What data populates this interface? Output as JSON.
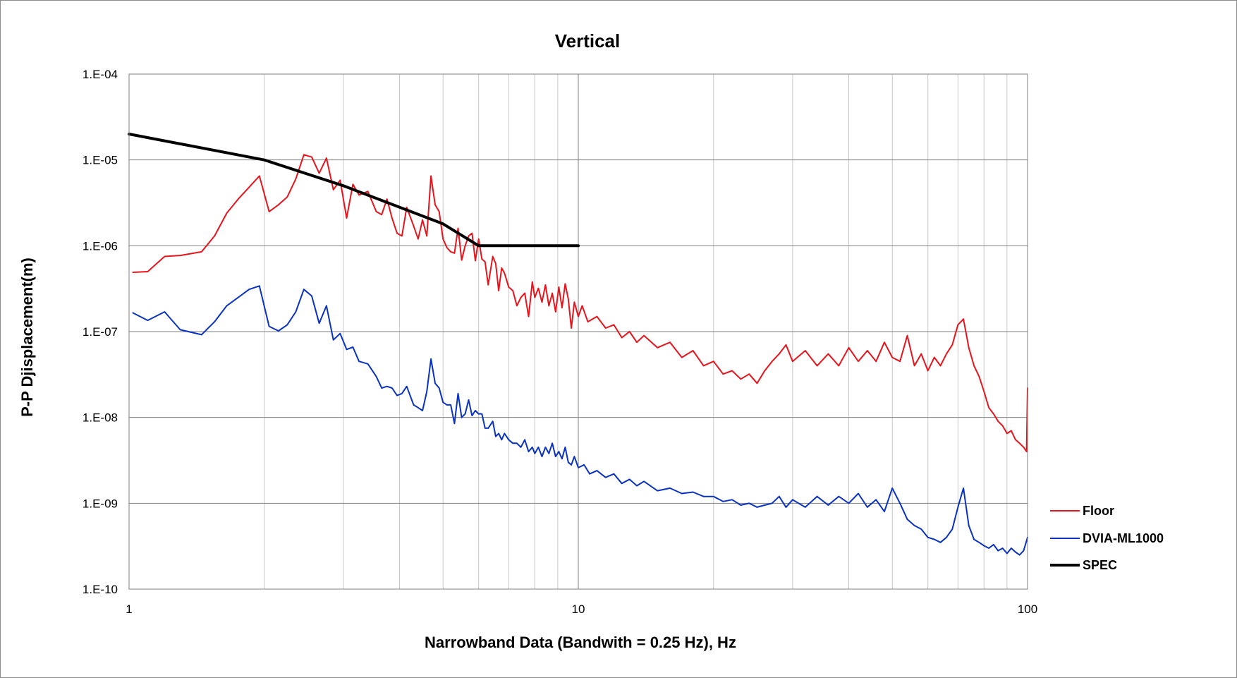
{
  "chart_data": {
    "type": "line",
    "title": "Vertical",
    "xlabel": "Narrowband Data (Bandwith = 0.25 Hz), Hz",
    "ylabel": "P-P Djisplacement(m)",
    "x_scale": "log",
    "y_scale": "log",
    "xlim": [
      1,
      100
    ],
    "ylim": [
      1e-10,
      0.0001
    ],
    "x_ticks": [
      {
        "value": 1,
        "label": "1"
      },
      {
        "value": 10,
        "label": "10"
      },
      {
        "value": 100,
        "label": "100"
      }
    ],
    "y_ticks": [
      {
        "value": 0.0001,
        "label": "1.E-04"
      },
      {
        "value": 1e-05,
        "label": "1.E-05"
      },
      {
        "value": 1e-06,
        "label": "1.E-06"
      },
      {
        "value": 1e-07,
        "label": "1.E-07"
      },
      {
        "value": 1e-08,
        "label": "1.E-08"
      },
      {
        "value": 1e-09,
        "label": "1.E-09"
      },
      {
        "value": 1e-10,
        "label": "1.E-10"
      }
    ],
    "grid": true,
    "legend_position": "right",
    "series": [
      {
        "name": "Floor",
        "color": "#e8141c",
        "line_width": 2,
        "points": [
          [
            1.02,
            4.9e-07
          ],
          [
            1.1,
            5e-07
          ],
          [
            1.2,
            7.5e-07
          ],
          [
            1.3,
            7.7e-07
          ],
          [
            1.45,
            8.5e-07
          ],
          [
            1.55,
            1.3e-06
          ],
          [
            1.65,
            2.4e-06
          ],
          [
            1.75,
            3.5e-06
          ],
          [
            1.85,
            4.8e-06
          ],
          [
            1.95,
            6.5e-06
          ],
          [
            2.05,
            2.5e-06
          ],
          [
            2.15,
            3e-06
          ],
          [
            2.25,
            3.7e-06
          ],
          [
            2.35,
            6e-06
          ],
          [
            2.45,
            1.15e-05
          ],
          [
            2.55,
            1.08e-05
          ],
          [
            2.65,
            7e-06
          ],
          [
            2.75,
            1.05e-05
          ],
          [
            2.85,
            4.5e-06
          ],
          [
            2.95,
            5.8e-06
          ],
          [
            3.05,
            2.1e-06
          ],
          [
            3.15,
            5.2e-06
          ],
          [
            3.25,
            3.9e-06
          ],
          [
            3.4,
            4.3e-06
          ],
          [
            3.55,
            2.5e-06
          ],
          [
            3.65,
            2.3e-06
          ],
          [
            3.75,
            3.5e-06
          ],
          [
            3.85,
            2.1e-06
          ],
          [
            3.95,
            1.4e-06
          ],
          [
            4.05,
            1.3e-06
          ],
          [
            4.15,
            2.8e-06
          ],
          [
            4.3,
            1.7e-06
          ],
          [
            4.4,
            1.2e-06
          ],
          [
            4.5,
            2e-06
          ],
          [
            4.6,
            1.3e-06
          ],
          [
            4.7,
            6.5e-06
          ],
          [
            4.8,
            3e-06
          ],
          [
            4.9,
            2.5e-06
          ],
          [
            5.0,
            1.2e-06
          ],
          [
            5.1,
            9.5e-07
          ],
          [
            5.2,
            8.5e-07
          ],
          [
            5.3,
            8.2e-07
          ],
          [
            5.4,
            1.6e-06
          ],
          [
            5.5,
            6.8e-07
          ],
          [
            5.6,
            1e-06
          ],
          [
            5.7,
            1.3e-06
          ],
          [
            5.8,
            1.4e-06
          ],
          [
            5.9,
            6.7e-07
          ],
          [
            6.0,
            1.2e-06
          ],
          [
            6.1,
            7e-07
          ],
          [
            6.2,
            6.5e-07
          ],
          [
            6.3,
            3.5e-07
          ],
          [
            6.45,
            7.5e-07
          ],
          [
            6.55,
            6.2e-07
          ],
          [
            6.65,
            3e-07
          ],
          [
            6.75,
            5.5e-07
          ],
          [
            6.85,
            4.8e-07
          ],
          [
            7.0,
            3.3e-07
          ],
          [
            7.15,
            3e-07
          ],
          [
            7.3,
            2e-07
          ],
          [
            7.45,
            2.5e-07
          ],
          [
            7.6,
            2.8e-07
          ],
          [
            7.75,
            1.5e-07
          ],
          [
            7.9,
            3.8e-07
          ],
          [
            8.0,
            2.5e-07
          ],
          [
            8.15,
            3.2e-07
          ],
          [
            8.3,
            2.2e-07
          ],
          [
            8.45,
            3.5e-07
          ],
          [
            8.6,
            2e-07
          ],
          [
            8.75,
            2.8e-07
          ],
          [
            8.9,
            1.7e-07
          ],
          [
            9.05,
            3.3e-07
          ],
          [
            9.2,
            1.9e-07
          ],
          [
            9.35,
            3.6e-07
          ],
          [
            9.5,
            2.4e-07
          ],
          [
            9.65,
            1.1e-07
          ],
          [
            9.8,
            2.2e-07
          ],
          [
            10.0,
            1.5e-07
          ],
          [
            10.2,
            2e-07
          ],
          [
            10.5,
            1.3e-07
          ],
          [
            11.0,
            1.5e-07
          ],
          [
            11.5,
            1.1e-07
          ],
          [
            12.0,
            1.2e-07
          ],
          [
            12.5,
            8.5e-08
          ],
          [
            13.0,
            1e-07
          ],
          [
            13.5,
            7.5e-08
          ],
          [
            14.0,
            9e-08
          ],
          [
            15.0,
            6.5e-08
          ],
          [
            16.0,
            7.5e-08
          ],
          [
            17.0,
            5e-08
          ],
          [
            18.0,
            6e-08
          ],
          [
            19.0,
            4e-08
          ],
          [
            20.0,
            4.5e-08
          ],
          [
            21.0,
            3.2e-08
          ],
          [
            22.0,
            3.5e-08
          ],
          [
            23.0,
            2.8e-08
          ],
          [
            24.0,
            3.2e-08
          ],
          [
            25.0,
            2.5e-08
          ],
          [
            26.0,
            3.5e-08
          ],
          [
            27.0,
            4.5e-08
          ],
          [
            28.0,
            5.5e-08
          ],
          [
            29.0,
            7e-08
          ],
          [
            30.0,
            4.5e-08
          ],
          [
            32.0,
            6e-08
          ],
          [
            34.0,
            4e-08
          ],
          [
            36.0,
            5.5e-08
          ],
          [
            38.0,
            4e-08
          ],
          [
            40.0,
            6.5e-08
          ],
          [
            42.0,
            4.5e-08
          ],
          [
            44.0,
            6e-08
          ],
          [
            46.0,
            4.5e-08
          ],
          [
            48.0,
            7.5e-08
          ],
          [
            50.0,
            5e-08
          ],
          [
            52.0,
            4.5e-08
          ],
          [
            54.0,
            9e-08
          ],
          [
            56.0,
            4e-08
          ],
          [
            58.0,
            5.5e-08
          ],
          [
            60.0,
            3.5e-08
          ],
          [
            62.0,
            5e-08
          ],
          [
            64.0,
            4e-08
          ],
          [
            66.0,
            5.5e-08
          ],
          [
            68.0,
            7e-08
          ],
          [
            70.0,
            1.2e-07
          ],
          [
            72.0,
            1.4e-07
          ],
          [
            74.0,
            6.5e-08
          ],
          [
            76.0,
            4e-08
          ],
          [
            78.0,
            3e-08
          ],
          [
            80.0,
            2e-08
          ],
          [
            82.0,
            1.3e-08
          ],
          [
            84.0,
            1.1e-08
          ],
          [
            86.0,
            9e-09
          ],
          [
            88.0,
            8e-09
          ],
          [
            90.0,
            6.5e-09
          ],
          [
            92.0,
            7e-09
          ],
          [
            94.0,
            5.5e-09
          ],
          [
            96.0,
            5e-09
          ],
          [
            98.0,
            4.5e-09
          ],
          [
            99.5,
            4e-09
          ],
          [
            100.0,
            2.2e-08
          ]
        ]
      },
      {
        "name": "DVIA-ML1000",
        "color": "#0a32c2",
        "line_width": 2,
        "points": [
          [
            1.02,
            1.65e-07
          ],
          [
            1.1,
            1.35e-07
          ],
          [
            1.2,
            1.7e-07
          ],
          [
            1.3,
            1.05e-07
          ],
          [
            1.45,
            9.2e-08
          ],
          [
            1.55,
            1.3e-07
          ],
          [
            1.65,
            2e-07
          ],
          [
            1.75,
            2.5e-07
          ],
          [
            1.85,
            3.1e-07
          ],
          [
            1.95,
            3.4e-07
          ],
          [
            2.05,
            1.15e-07
          ],
          [
            2.15,
            1.02e-07
          ],
          [
            2.25,
            1.2e-07
          ],
          [
            2.35,
            1.7e-07
          ],
          [
            2.45,
            3.1e-07
          ],
          [
            2.55,
            2.6e-07
          ],
          [
            2.65,
            1.25e-07
          ],
          [
            2.75,
            2e-07
          ],
          [
            2.85,
            8e-08
          ],
          [
            2.95,
            9.5e-08
          ],
          [
            3.05,
            6.2e-08
          ],
          [
            3.15,
            6.6e-08
          ],
          [
            3.25,
            4.5e-08
          ],
          [
            3.4,
            4.2e-08
          ],
          [
            3.55,
            3e-08
          ],
          [
            3.65,
            2.2e-08
          ],
          [
            3.75,
            2.3e-08
          ],
          [
            3.85,
            2.2e-08
          ],
          [
            3.95,
            1.8e-08
          ],
          [
            4.05,
            1.9e-08
          ],
          [
            4.15,
            2.3e-08
          ],
          [
            4.3,
            1.4e-08
          ],
          [
            4.4,
            1.3e-08
          ],
          [
            4.5,
            1.2e-08
          ],
          [
            4.6,
            2e-08
          ],
          [
            4.7,
            4.8e-08
          ],
          [
            4.8,
            2.5e-08
          ],
          [
            4.9,
            2.2e-08
          ],
          [
            5.0,
            1.5e-08
          ],
          [
            5.1,
            1.4e-08
          ],
          [
            5.2,
            1.4e-08
          ],
          [
            5.3,
            8.5e-09
          ],
          [
            5.4,
            1.9e-08
          ],
          [
            5.5,
            1e-08
          ],
          [
            5.6,
            1.1e-08
          ],
          [
            5.7,
            1.6e-08
          ],
          [
            5.8,
            1.05e-08
          ],
          [
            5.9,
            1.2e-08
          ],
          [
            6.0,
            1.1e-08
          ],
          [
            6.1,
            1.1e-08
          ],
          [
            6.2,
            7.5e-09
          ],
          [
            6.3,
            7.5e-09
          ],
          [
            6.45,
            9e-09
          ],
          [
            6.55,
            6e-09
          ],
          [
            6.65,
            6.5e-09
          ],
          [
            6.75,
            5.5e-09
          ],
          [
            6.85,
            6.5e-09
          ],
          [
            7.0,
            5.5e-09
          ],
          [
            7.15,
            5e-09
          ],
          [
            7.3,
            5e-09
          ],
          [
            7.45,
            4.5e-09
          ],
          [
            7.6,
            5.5e-09
          ],
          [
            7.75,
            4e-09
          ],
          [
            7.9,
            4.5e-09
          ],
          [
            8.0,
            3.8e-09
          ],
          [
            8.15,
            4.5e-09
          ],
          [
            8.3,
            3.5e-09
          ],
          [
            8.45,
            4.5e-09
          ],
          [
            8.6,
            3.8e-09
          ],
          [
            8.75,
            5e-09
          ],
          [
            8.9,
            3.5e-09
          ],
          [
            9.05,
            4e-09
          ],
          [
            9.2,
            3.3e-09
          ],
          [
            9.35,
            4.5e-09
          ],
          [
            9.5,
            3e-09
          ],
          [
            9.65,
            2.8e-09
          ],
          [
            9.8,
            3.5e-09
          ],
          [
            10.0,
            2.6e-09
          ],
          [
            10.3,
            2.8e-09
          ],
          [
            10.6,
            2.2e-09
          ],
          [
            11.0,
            2.4e-09
          ],
          [
            11.5,
            2e-09
          ],
          [
            12.0,
            2.2e-09
          ],
          [
            12.5,
            1.7e-09
          ],
          [
            13.0,
            1.9e-09
          ],
          [
            13.5,
            1.6e-09
          ],
          [
            14.0,
            1.8e-09
          ],
          [
            15.0,
            1.4e-09
          ],
          [
            16.0,
            1.5e-09
          ],
          [
            17.0,
            1.3e-09
          ],
          [
            18.0,
            1.35e-09
          ],
          [
            19.0,
            1.2e-09
          ],
          [
            20.0,
            1.2e-09
          ],
          [
            21.0,
            1.05e-09
          ],
          [
            22.0,
            1.1e-09
          ],
          [
            23.0,
            9.5e-10
          ],
          [
            24.0,
            1e-09
          ],
          [
            25.0,
            9e-10
          ],
          [
            26.0,
            9.5e-10
          ],
          [
            27.0,
            1e-09
          ],
          [
            28.0,
            1.2e-09
          ],
          [
            29.0,
            9e-10
          ],
          [
            30.0,
            1.1e-09
          ],
          [
            32.0,
            9e-10
          ],
          [
            34.0,
            1.2e-09
          ],
          [
            36.0,
            9.5e-10
          ],
          [
            38.0,
            1.2e-09
          ],
          [
            40.0,
            1e-09
          ],
          [
            42.0,
            1.3e-09
          ],
          [
            44.0,
            9e-10
          ],
          [
            46.0,
            1.1e-09
          ],
          [
            48.0,
            8e-10
          ],
          [
            50.0,
            1.5e-09
          ],
          [
            52.0,
            1e-09
          ],
          [
            54.0,
            6.5e-10
          ],
          [
            56.0,
            5.5e-10
          ],
          [
            58.0,
            5e-10
          ],
          [
            60.0,
            4e-10
          ],
          [
            62.0,
            3.8e-10
          ],
          [
            64.0,
            3.5e-10
          ],
          [
            66.0,
            4e-10
          ],
          [
            68.0,
            5e-10
          ],
          [
            70.0,
            9e-10
          ],
          [
            72.0,
            1.5e-09
          ],
          [
            74.0,
            5.5e-10
          ],
          [
            76.0,
            3.8e-10
          ],
          [
            78.0,
            3.5e-10
          ],
          [
            80.0,
            3.2e-10
          ],
          [
            82.0,
            3e-10
          ],
          [
            84.0,
            3.3e-10
          ],
          [
            86.0,
            2.8e-10
          ],
          [
            88.0,
            3e-10
          ],
          [
            90.0,
            2.6e-10
          ],
          [
            92.0,
            3e-10
          ],
          [
            94.0,
            2.7e-10
          ],
          [
            96.0,
            2.5e-10
          ],
          [
            98.0,
            2.8e-10
          ],
          [
            100.0,
            4e-10
          ]
        ]
      },
      {
        "name": "SPEC",
        "color": "#000000",
        "line_width": 4,
        "points": [
          [
            1,
            2e-05
          ],
          [
            2,
            1e-05
          ],
          [
            3,
            5e-06
          ],
          [
            5,
            1.8e-06
          ],
          [
            6,
            1e-06
          ],
          [
            10,
            1e-06
          ]
        ]
      }
    ]
  }
}
